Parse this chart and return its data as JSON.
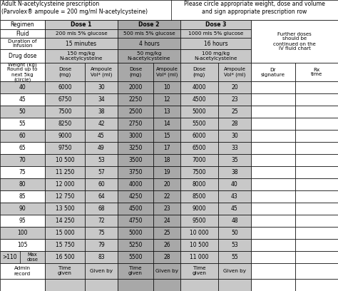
{
  "title_left": "Adult N-acetylcysteine prescription\n(Parvolex® ampoule = 200 mg/ml N-acetylcysteine)",
  "title_right": "Please circle appropriate weight, dose and volume\nand sign appropriate prescription row",
  "data_rows": [
    [
      "40",
      "6000",
      "30",
      "2000",
      "10",
      "4000",
      "20"
    ],
    [
      "45",
      "6750",
      "34",
      "2250",
      "12",
      "4500",
      "23"
    ],
    [
      "50",
      "7500",
      "38",
      "2500",
      "13",
      "5000",
      "25"
    ],
    [
      "55",
      "8250",
      "42",
      "2750",
      "14",
      "5500",
      "28"
    ],
    [
      "60",
      "9000",
      "45",
      "3000",
      "15",
      "6000",
      "30"
    ],
    [
      "65",
      "9750",
      "49",
      "3250",
      "17",
      "6500",
      "33"
    ],
    [
      "70",
      "10 500",
      "53",
      "3500",
      "18",
      "7000",
      "35"
    ],
    [
      "75",
      "11 250",
      "57",
      "3750",
      "19",
      "7500",
      "38"
    ],
    [
      "80",
      "12 000",
      "60",
      "4000",
      "20",
      "8000",
      "40"
    ],
    [
      "85",
      "12 750",
      "64",
      "4250",
      "22",
      "8500",
      "43"
    ],
    [
      "90",
      "13 500",
      "68",
      "4500",
      "23",
      "9000",
      "45"
    ],
    [
      "95",
      "14 250",
      "72",
      "4750",
      "24",
      "9500",
      "48"
    ],
    [
      "100",
      "15 000",
      "75",
      "5000",
      "25",
      "10 000",
      "50"
    ],
    [
      "105",
      "15 750",
      "79",
      "5250",
      "26",
      "10 500",
      "53"
    ],
    [
      ">110",
      "16 500",
      "83",
      "5500",
      "28",
      "11 000",
      "55"
    ]
  ],
  "bg_white": "#ffffff",
  "bg_light_gray": "#c8c8c8",
  "bg_medium_gray": "#a8a8a8",
  "border_color": "#000000"
}
